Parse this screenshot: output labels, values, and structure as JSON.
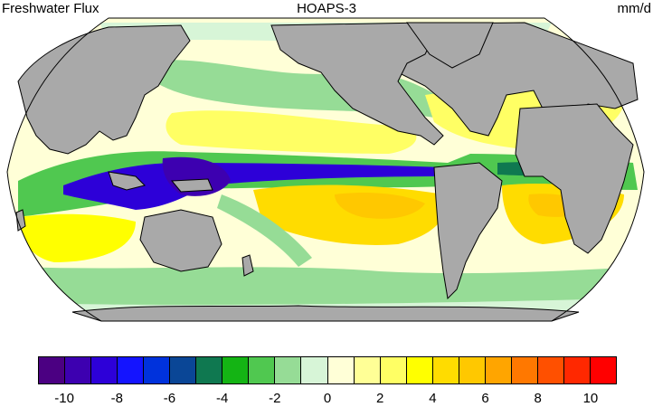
{
  "header": {
    "left_title": "Freshwater Flux",
    "center_title": "HOAPS-3",
    "right_title": "mm/d"
  },
  "map": {
    "projection": "Robinson",
    "land_color": "#a9a9a9",
    "coast_color": "#000000"
  },
  "colorbar": {
    "colors": [
      "#4b0082",
      "#3d00b0",
      "#2d00d8",
      "#1414ff",
      "#0032dc",
      "#0a4696",
      "#0f7850",
      "#14b414",
      "#50c850",
      "#96dc96",
      "#d7f5d7",
      "#ffffd7",
      "#ffff96",
      "#ffff64",
      "#ffff00",
      "#ffdc00",
      "#ffc800",
      "#ffa500",
      "#ff7800",
      "#ff5000",
      "#ff2800",
      "#ff0000"
    ],
    "tick_labels": [
      "-10",
      "-8",
      "-6",
      "-4",
      "-2",
      "0",
      "2",
      "4",
      "6",
      "8",
      "10"
    ]
  }
}
